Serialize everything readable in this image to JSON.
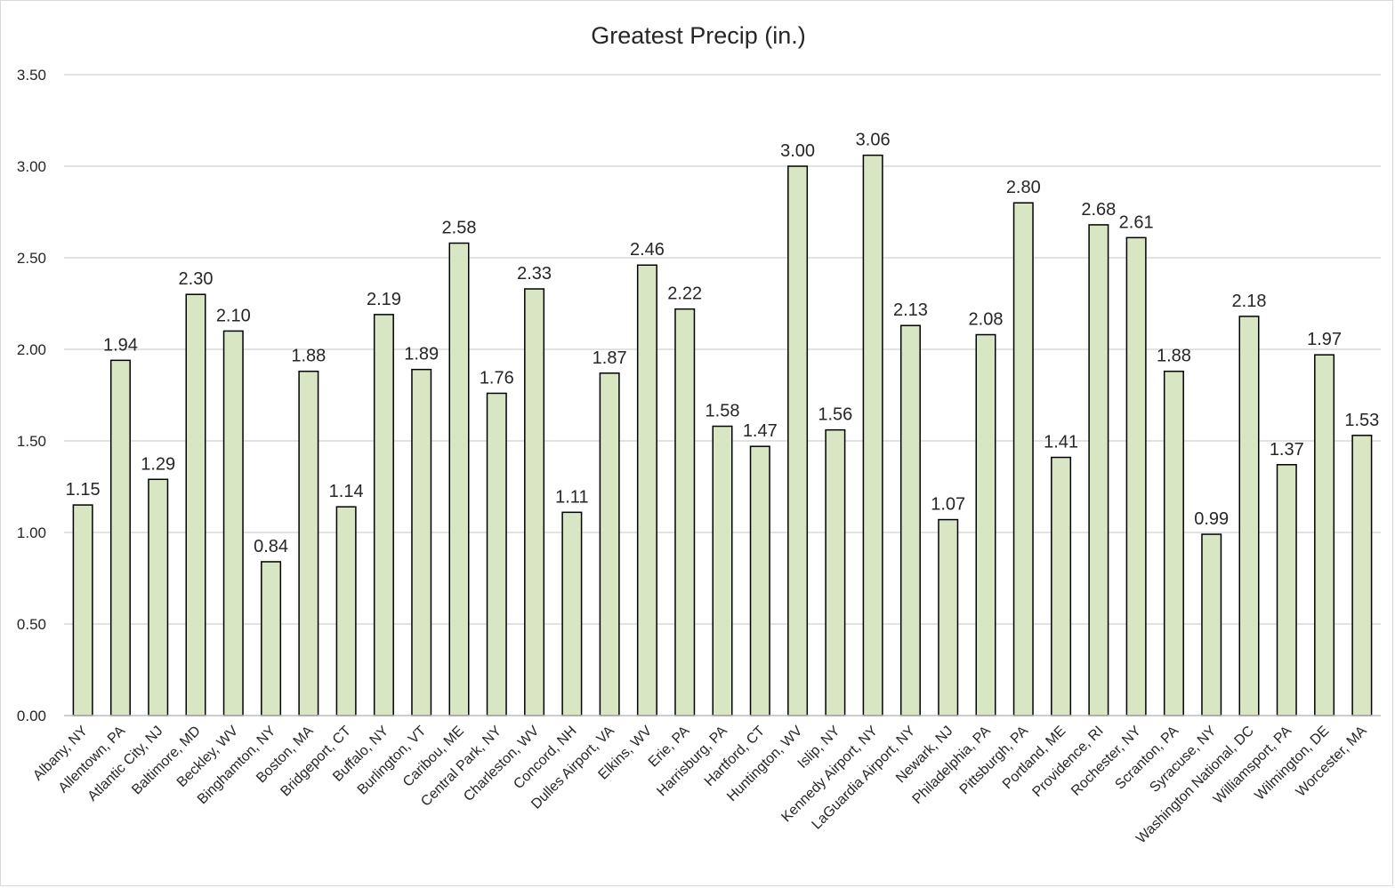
{
  "chart_data": {
    "type": "bar",
    "title": "Greatest Precip (in.)",
    "xlabel": "",
    "ylabel": "",
    "ylim": [
      0,
      3.5
    ],
    "yticks": [
      "0.00",
      "0.50",
      "1.00",
      "1.50",
      "2.00",
      "2.50",
      "3.00",
      "3.50"
    ],
    "grid": true,
    "legend": "none",
    "bar_color": "#d9e6c3",
    "bar_edge_color": "#000000",
    "categories": [
      "Albany, NY",
      "Allentown, PA",
      "Atlantic City, NJ",
      "Baltimore, MD",
      "Beckley, WV",
      "Binghamton, NY",
      "Boston, MA",
      "Bridgeport, CT",
      "Buffalo, NY",
      "Burlington, VT",
      "Caribou, ME",
      "Central Park, NY",
      "Charleston, WV",
      "Concord, NH",
      "Dulles Airport, VA",
      "Elkins, WV",
      "Erie, PA",
      "Harrisburg, PA",
      "Hartford, CT",
      "Huntington, WV",
      "Islip, NY",
      "Kennedy Airport, NY",
      "LaGuardia Airport, NY",
      "Newark, NJ",
      "Philadelphia, PA",
      "Pittsburgh, PA",
      "Portland, ME",
      "Providence, RI",
      "Rochester, NY",
      "Scranton, PA",
      "Syracuse, NY",
      "Washington National, DC",
      "Williamsport, PA",
      "Wilmington, DE",
      "Worcester, MA"
    ],
    "values": [
      1.15,
      1.94,
      1.29,
      2.3,
      2.1,
      0.84,
      1.88,
      1.14,
      2.19,
      1.89,
      2.58,
      1.76,
      2.33,
      1.11,
      1.87,
      2.46,
      2.22,
      1.58,
      1.47,
      3.0,
      1.56,
      3.06,
      2.13,
      1.07,
      2.08,
      2.8,
      1.41,
      2.68,
      2.61,
      1.88,
      0.99,
      2.18,
      1.37,
      1.97,
      1.53
    ],
    "value_labels": [
      "1.15",
      "1.94",
      "1.29",
      "2.30",
      "2.10",
      "0.84",
      "1.88",
      "1.14",
      "2.19",
      "1.89",
      "2.58",
      "1.76",
      "2.33",
      "1.11",
      "1.87",
      "2.46",
      "2.22",
      "1.58",
      "1.47",
      "3.00",
      "1.56",
      "3.06",
      "2.13",
      "1.07",
      "2.08",
      "2.80",
      "1.41",
      "2.68",
      "2.61",
      "1.88",
      "0.99",
      "2.18",
      "1.37",
      "1.97",
      "1.53"
    ]
  }
}
